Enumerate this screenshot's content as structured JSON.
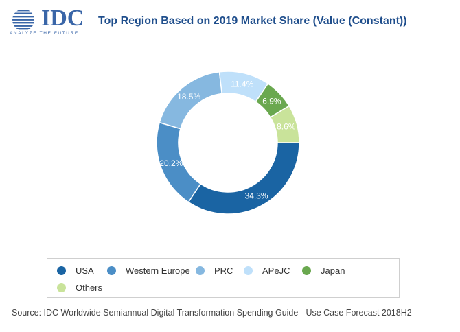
{
  "logo": {
    "text": "IDC",
    "tagline": "ANALYZE THE FUTURE"
  },
  "title": "Top Region Based on 2019 Market Share (Value (Constant))",
  "source": "Source: IDC Worldwide Semiannual Digital Transformation Spending Guide - Use Case Forecast 2018H2",
  "chart_data": {
    "type": "pie",
    "donut": true,
    "title": "Top Region Based on 2019 Market Share (Value (Constant))",
    "unit": "%",
    "categories": [
      "USA",
      "Western Europe",
      "PRC",
      "APeJC",
      "Japan",
      "Others"
    ],
    "values": [
      34.3,
      20.2,
      18.5,
      11.4,
      6.9,
      8.6
    ],
    "labels": [
      "34.3%",
      "20.2%",
      "18.5%",
      "11.4%",
      "6.9%",
      "8.6%"
    ],
    "colors": [
      "#1a64a3",
      "#4b8ec6",
      "#86b8e0",
      "#bfe0fa",
      "#6aa84f",
      "#c9e39a"
    ],
    "label_colors": [
      "#ffffff",
      "#ffffff",
      "#ffffff",
      "#ffffff",
      "#ffffff",
      "#ffffff"
    ],
    "legend_position": "bottom"
  },
  "legend": {
    "items": [
      {
        "label": "USA",
        "color": "#1a64a3"
      },
      {
        "label": "Western Europe",
        "color": "#4b8ec6"
      },
      {
        "label": "PRC",
        "color": "#86b8e0"
      },
      {
        "label": "APeJC",
        "color": "#bfe0fa"
      },
      {
        "label": "Japan",
        "color": "#6aa84f"
      },
      {
        "label": "Others",
        "color": "#c9e39a"
      }
    ]
  }
}
